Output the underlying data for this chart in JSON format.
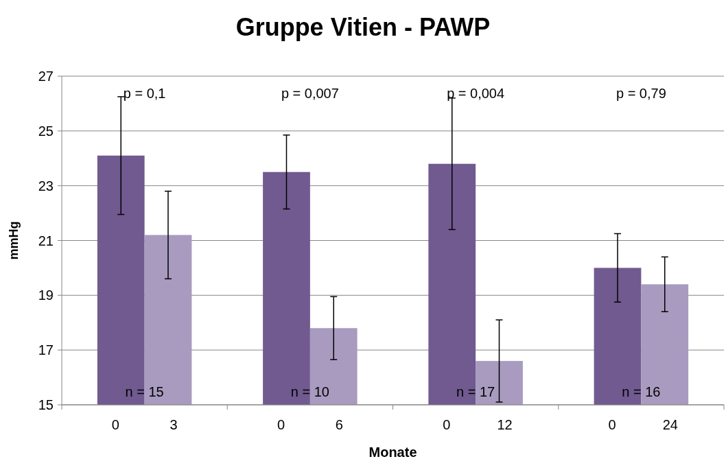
{
  "chart_data": {
    "type": "bar",
    "title": "Gruppe Vitien - PAWP",
    "xlabel": "Monate",
    "ylabel": "mmHg",
    "categories": [
      "0",
      "3",
      "0",
      "6",
      "0",
      "12",
      "0",
      "24"
    ],
    "values": [
      24.1,
      21.2,
      23.5,
      17.8,
      23.8,
      16.6,
      20.0,
      19.4
    ],
    "colors": [
      "#705a8f",
      "#a89bbf",
      "#705a8f",
      "#a89bbf",
      "#705a8f",
      "#a89bbf",
      "#705a8f",
      "#a89bbf"
    ],
    "errors": [
      2.15,
      1.6,
      1.35,
      1.15,
      2.4,
      1.5,
      1.25,
      1.0
    ],
    "ylim": [
      15,
      27
    ],
    "yticks": [
      15,
      17,
      19,
      21,
      23,
      25,
      27
    ],
    "grid": "y",
    "annotations": [
      "p = 0,1",
      "p = 0,007",
      "p = 0,004",
      "p = 0,79",
      "n = 15",
      "n = 10",
      "n = 17",
      "n = 16"
    ]
  }
}
